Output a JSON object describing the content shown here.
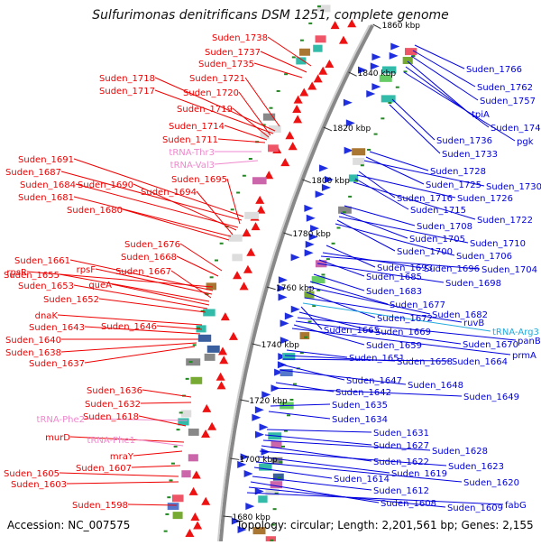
{
  "title": "Sulfurimonas denitrificans DSM 1251, complete genome",
  "footer": {
    "accession": "Accession: NC_007575",
    "summary": "Topology: circular; Length: 2,201,561 bp; Genes: 2,155"
  },
  "colors": {
    "left_labels": "#ee0000",
    "right_labels": "#0000dd",
    "trna_left": "#ee88cc",
    "trna_right": "#22aadd",
    "backbone": "#888888"
  },
  "ticks": [
    "1860 kbp",
    "1840 kbp",
    "1820 kbp",
    "1800 kbp",
    "1780 kbp",
    "1760 kbp",
    "1740 kbp",
    "1720 kbp",
    "1700 kbp",
    "1680 kbp"
  ],
  "left_labels": [
    "Suden_1738",
    "Suden_1737",
    "Suden_1735",
    "Suden_1721",
    "Suden_1718",
    "Suden_1717",
    "Suden_1720",
    "Suden_1719",
    "Suden_1714",
    "Suden_1711",
    "tRNA-Thr3",
    "tRNA-Val3",
    "Suden_1691",
    "Suden_1687",
    "Suden_1695",
    "Suden_1684",
    "Suden_1690",
    "Suden_1694",
    "Suden_1681",
    "Suden_1680",
    "Suden_1676",
    "Suden_1668",
    "rpsR",
    "Suden_1661",
    "rpsF",
    "Suden_1667",
    "Suden_1655",
    "queA",
    "Suden_1653",
    "Suden_1652",
    "dnaK",
    "Suden_1646",
    "Suden_1643",
    "Suden_1640",
    "Suden_1638",
    "Suden_1637",
    "Suden_1636",
    "Suden_1632",
    "tRNA-Phe2",
    "Suden_1618",
    "murD",
    "tRNA-Phe1",
    "mraY",
    "Suden_1607",
    "Suden_1605",
    "Suden_1603",
    "Suden_1598"
  ],
  "right_labels": [
    "Suden_1766",
    "Suden_1762",
    "Suden_1757",
    "tpiA",
    "Suden_1746",
    "pgk",
    "Suden_1736",
    "Suden_1733",
    "Suden_1728",
    "Suden_1725",
    "Suden_1730",
    "Suden_1716",
    "Suden_1726",
    "Suden_1715",
    "Suden_1722",
    "Suden_1708",
    "Suden_1705",
    "Suden_1710",
    "Suden_1700",
    "Suden_1706",
    "Suden_1693",
    "Suden_1696",
    "Suden_1704",
    "Suden_1685",
    "Suden_1698",
    "Suden_1683",
    "Suden_1677",
    "Suden_1682",
    "Suden_1672",
    "ruvB",
    "tRNA-Arg3",
    "Suden_1665",
    "Suden_1669",
    "panB",
    "Suden_1670",
    "Suden_1659",
    "prmA",
    "Suden_1651",
    "Suden_1658",
    "Suden_1664",
    "Suden_1647",
    "Suden_1648",
    "Suden_1642",
    "Suden_1649",
    "Suden_1635",
    "Suden_1634",
    "Suden_1631",
    "Suden_1627",
    "Suden_1628",
    "Suden_1622",
    "Suden_1623",
    "Suden_1619",
    "Suden_1620",
    "Suden_1614",
    "Suden_1612",
    "Suden_1608",
    "Suden_1609",
    "fabG"
  ]
}
